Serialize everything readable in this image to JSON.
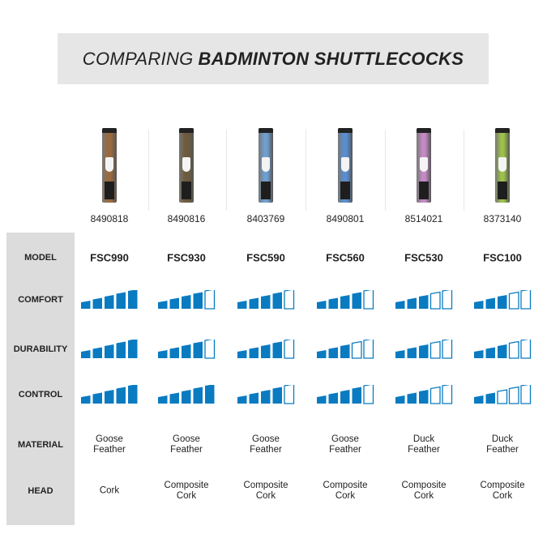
{
  "title": {
    "light": "COMPARING",
    "bold": "BADMINTON SHUTTLECOCKS"
  },
  "row_labels": [
    "MODEL",
    "COMFORT",
    "DURABILITY",
    "CONTROL",
    "MATERIAL",
    "HEAD"
  ],
  "accent_color": "#0a7bc1",
  "products": [
    {
      "sku": "8490818",
      "model": "FSC990",
      "comfort": 5,
      "durability": 5,
      "control": 5,
      "material": [
        "Goose",
        "Feather"
      ],
      "head": [
        "Cork"
      ],
      "tube_color": "#9a6a3e"
    },
    {
      "sku": "8490816",
      "model": "FSC930",
      "comfort": 4,
      "durability": 4,
      "control": 5,
      "material": [
        "Goose",
        "Feather"
      ],
      "head": [
        "Composite",
        "Cork"
      ],
      "tube_color": "#6e5a3c"
    },
    {
      "sku": "8403769",
      "model": "FSC590",
      "comfort": 4,
      "durability": 4,
      "control": 4,
      "material": [
        "Goose",
        "Feather"
      ],
      "head": [
        "Composite",
        "Cork"
      ],
      "tube_color": "#6f9fcf"
    },
    {
      "sku": "8490801",
      "model": "FSC560",
      "comfort": 4,
      "durability": 3,
      "control": 4,
      "material": [
        "Goose",
        "Feather"
      ],
      "head": [
        "Composite",
        "Cork"
      ],
      "tube_color": "#5a8ed0"
    },
    {
      "sku": "8514021",
      "model": "FSC530",
      "comfort": 3,
      "durability": 3,
      "control": 3,
      "material": [
        "Duck",
        "Feather"
      ],
      "head": [
        "Composite",
        "Cork"
      ],
      "tube_color": "#c48ac4"
    },
    {
      "sku": "8373140",
      "model": "FSC100",
      "comfort": 3,
      "durability": 3,
      "control": 2,
      "material": [
        "Duck",
        "Feather"
      ],
      "head": [
        "Composite",
        "Cork"
      ],
      "tube_color": "#9cc04a"
    }
  ]
}
